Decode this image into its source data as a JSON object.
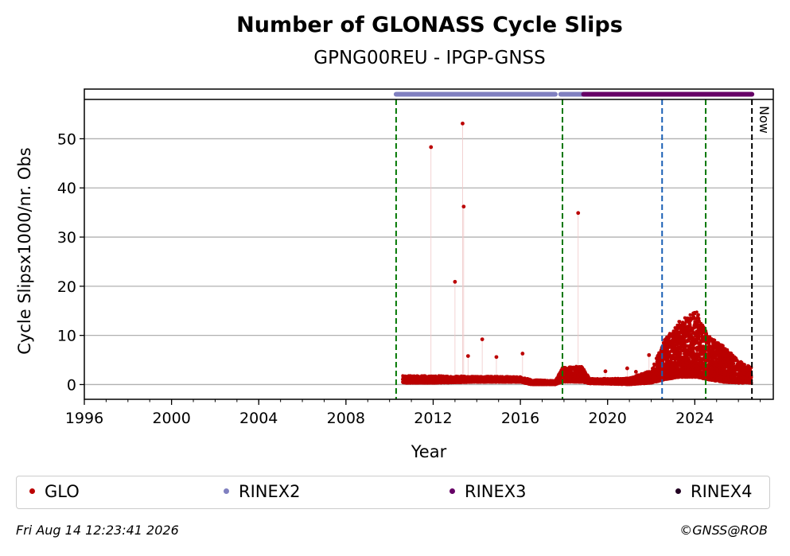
{
  "chart_data": {
    "type": "scatter",
    "title": "Number of GLONASS Cycle Slips",
    "subtitle": "GPNG00REU - IPGP-GNSS",
    "xlabel": "Year",
    "ylabel": "Cycle Slipsx1000/nr. Obs",
    "xlim": [
      1996,
      2027.6
    ],
    "ylim": [
      -3,
      58
    ],
    "xticks": [
      1996,
      2000,
      2004,
      2008,
      2012,
      2016,
      2020,
      2024
    ],
    "yticks": [
      0,
      10,
      20,
      30,
      40,
      50
    ],
    "grid": "horizontal",
    "now_label": "Now",
    "now_x": 2026.62,
    "vlines": [
      {
        "x": 2010.3,
        "color": "#007700",
        "style": "dashed"
      },
      {
        "x": 2017.93,
        "color": "#007700",
        "style": "dashed"
      },
      {
        "x": 2022.5,
        "color": "#1a5fb4",
        "style": "dashed"
      },
      {
        "x": 2024.5,
        "color": "#007700",
        "style": "dashed"
      }
    ],
    "rinex_bars": [
      {
        "name": "RINEX2",
        "color": "#8080c0",
        "segments": [
          [
            2010.3,
            2017.6
          ],
          [
            2017.85,
            2018.9
          ]
        ]
      },
      {
        "name": "RINEX3",
        "color": "#660066",
        "segments": [
          [
            2018.9,
            2026.62
          ]
        ]
      }
    ],
    "series": [
      {
        "name": "GLO",
        "color": "#bb0000",
        "outliers": [
          {
            "x": 2011.9,
            "y": 48.3
          },
          {
            "x": 2013.35,
            "y": 53.1
          },
          {
            "x": 2013.4,
            "y": 36.2
          },
          {
            "x": 2013.0,
            "y": 20.9
          },
          {
            "x": 2018.65,
            "y": 34.9
          },
          {
            "x": 2014.25,
            "y": 9.2
          },
          {
            "x": 2013.6,
            "y": 5.8
          },
          {
            "x": 2014.9,
            "y": 5.6
          },
          {
            "x": 2016.1,
            "y": 6.3
          },
          {
            "x": 2019.9,
            "y": 2.7
          },
          {
            "x": 2020.9,
            "y": 3.3
          },
          {
            "x": 2021.3,
            "y": 2.6
          },
          {
            "x": 2021.9,
            "y": 6.0
          }
        ],
        "envelope": [
          {
            "x": 2010.6,
            "low": 0.3,
            "high": 1.8
          },
          {
            "x": 2012.0,
            "low": 0.3,
            "high": 1.8
          },
          {
            "x": 2014.0,
            "low": 0.5,
            "high": 1.7
          },
          {
            "x": 2016.0,
            "low": 0.5,
            "high": 1.6
          },
          {
            "x": 2016.5,
            "low": 0.0,
            "high": 1.0
          },
          {
            "x": 2017.6,
            "low": 0.0,
            "high": 0.8
          },
          {
            "x": 2017.95,
            "low": 0.5,
            "high": 3.6
          },
          {
            "x": 2018.8,
            "low": 0.5,
            "high": 3.8
          },
          {
            "x": 2019.2,
            "low": 0.2,
            "high": 1.2
          },
          {
            "x": 2021.0,
            "low": 0.0,
            "high": 1.3
          },
          {
            "x": 2022.0,
            "low": 0.3,
            "high": 3.0
          },
          {
            "x": 2022.6,
            "low": 1.0,
            "high": 9.0
          },
          {
            "x": 2023.3,
            "low": 1.5,
            "high": 13.0
          },
          {
            "x": 2024.1,
            "low": 1.5,
            "high": 15.0
          },
          {
            "x": 2024.6,
            "low": 1.0,
            "high": 10.0
          },
          {
            "x": 2025.3,
            "low": 0.5,
            "high": 8.0
          },
          {
            "x": 2026.0,
            "low": 0.3,
            "high": 5.0
          },
          {
            "x": 2026.6,
            "low": 0.3,
            "high": 3.5
          }
        ]
      }
    ],
    "legend": {
      "placement": "bottom",
      "entries": [
        {
          "label": "GLO",
          "color": "#bb0000"
        },
        {
          "label": "RINEX2",
          "color": "#8080c0"
        },
        {
          "label": "RINEX3",
          "color": "#660066"
        },
        {
          "label": "RINEX4",
          "color": "#220022"
        }
      ]
    }
  },
  "footer": {
    "timestamp": "Fri Aug 14 12:23:41 2026",
    "credit": "©GNSS@ROB"
  }
}
